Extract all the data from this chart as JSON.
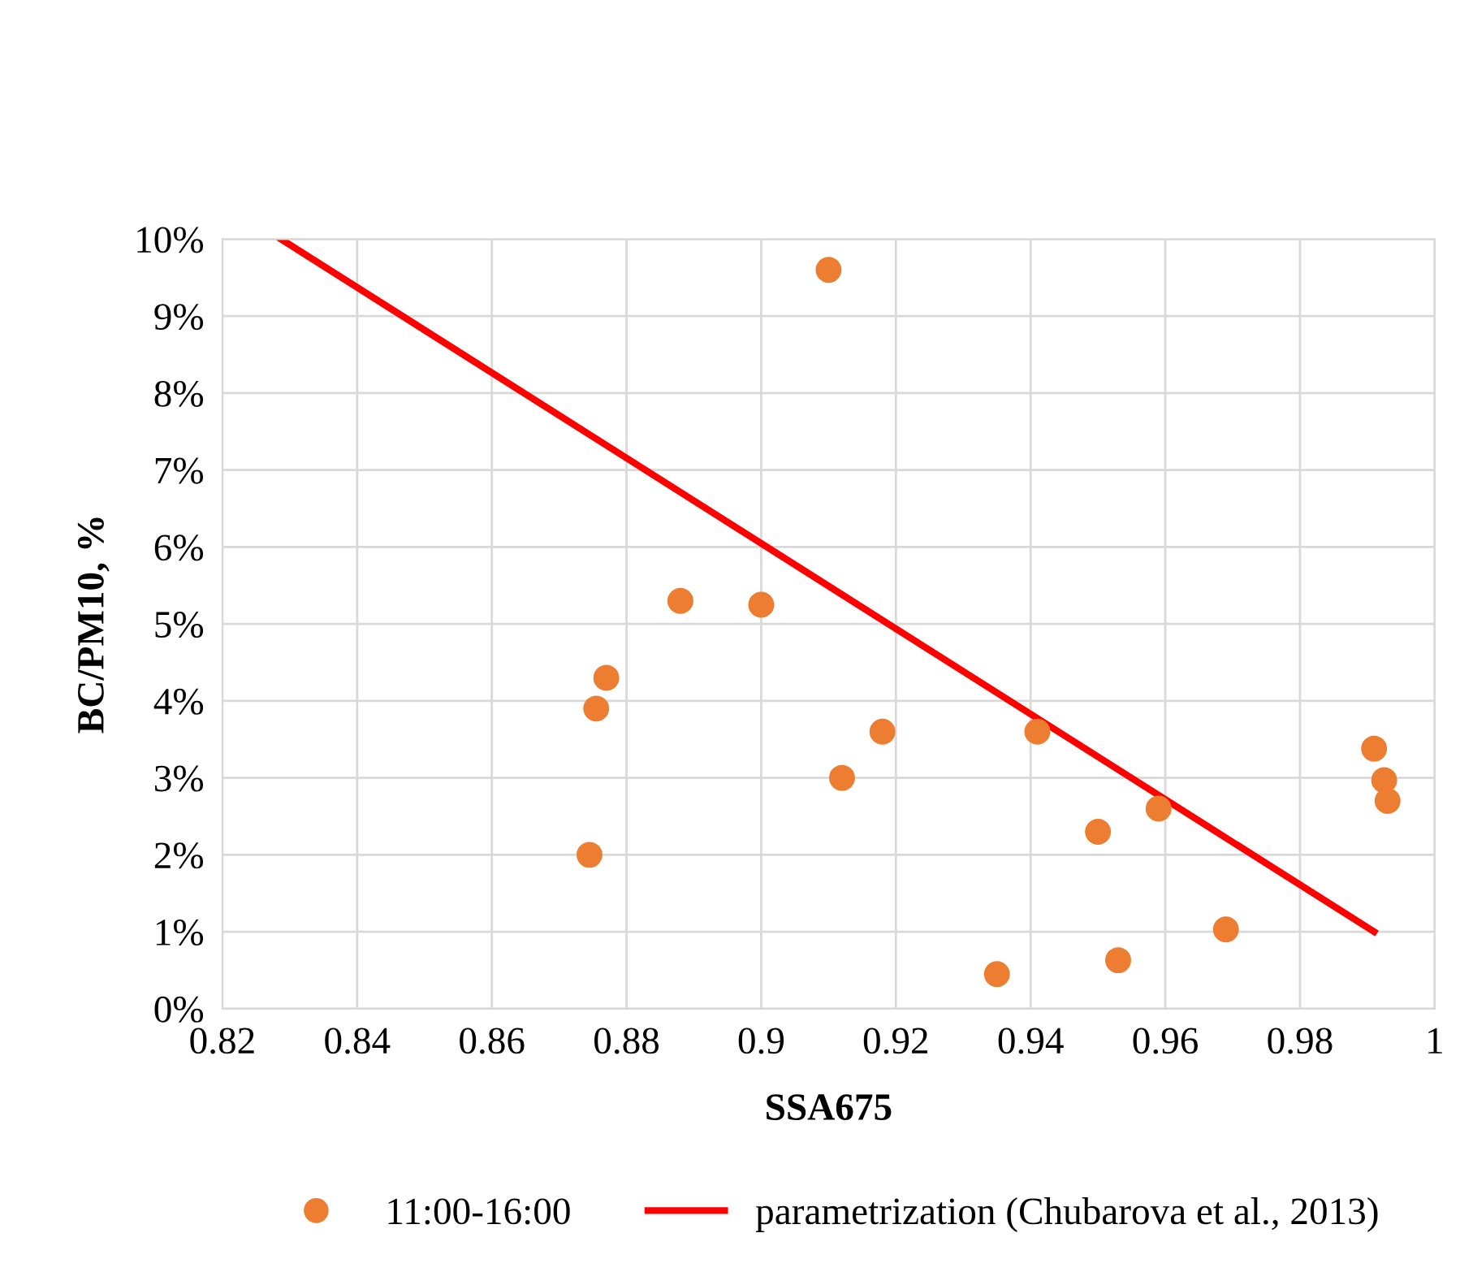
{
  "chart_data": {
    "type": "scatter",
    "xlabel": "SSA675",
    "ylabel": "BC/PM10, %",
    "xlim": [
      0.82,
      1
    ],
    "xticks": [
      0.82,
      0.84,
      0.86,
      0.88,
      0.9,
      0.92,
      0.94,
      0.96,
      0.98,
      1
    ],
    "ylim": [
      0,
      10
    ],
    "yticks": [
      {
        "value": 0,
        "label": "0%"
      },
      {
        "value": 1,
        "label": "1%"
      },
      {
        "value": 2,
        "label": "2%"
      },
      {
        "value": 3,
        "label": "3%"
      },
      {
        "value": 4,
        "label": "4%"
      },
      {
        "value": 5,
        "label": "5%"
      },
      {
        "value": 6,
        "label": "6%"
      },
      {
        "value": 7,
        "label": "7%"
      },
      {
        "value": 8,
        "label": "8%"
      },
      {
        "value": 9,
        "label": "9%"
      },
      {
        "value": 10,
        "label": "10%"
      }
    ],
    "grid": true,
    "legend": "bottom",
    "series": [
      {
        "name": "11:00-16:00",
        "color": "#ed7d31",
        "marker": "circle",
        "x": [
          0.8745,
          0.8755,
          0.877,
          0.888,
          0.9,
          0.91,
          0.912,
          0.918,
          0.935,
          0.941,
          0.95,
          0.953,
          0.959,
          0.969,
          0.991,
          0.9925,
          0.993
        ],
        "values": [
          2.0,
          3.9,
          4.3,
          5.3,
          5.25,
          9.6,
          3.0,
          3.6,
          0.45,
          3.6,
          2.3,
          0.63,
          2.6,
          1.03,
          3.38,
          2.97,
          2.7
        ]
      },
      {
        "name": "parametrization (Chubarova et al., 2013)",
        "type": "line",
        "color": "#ff0000",
        "line_style": "solid",
        "x": [
          0.8287,
          0.991
        ],
        "values": [
          10,
          1.0
        ]
      }
    ]
  }
}
